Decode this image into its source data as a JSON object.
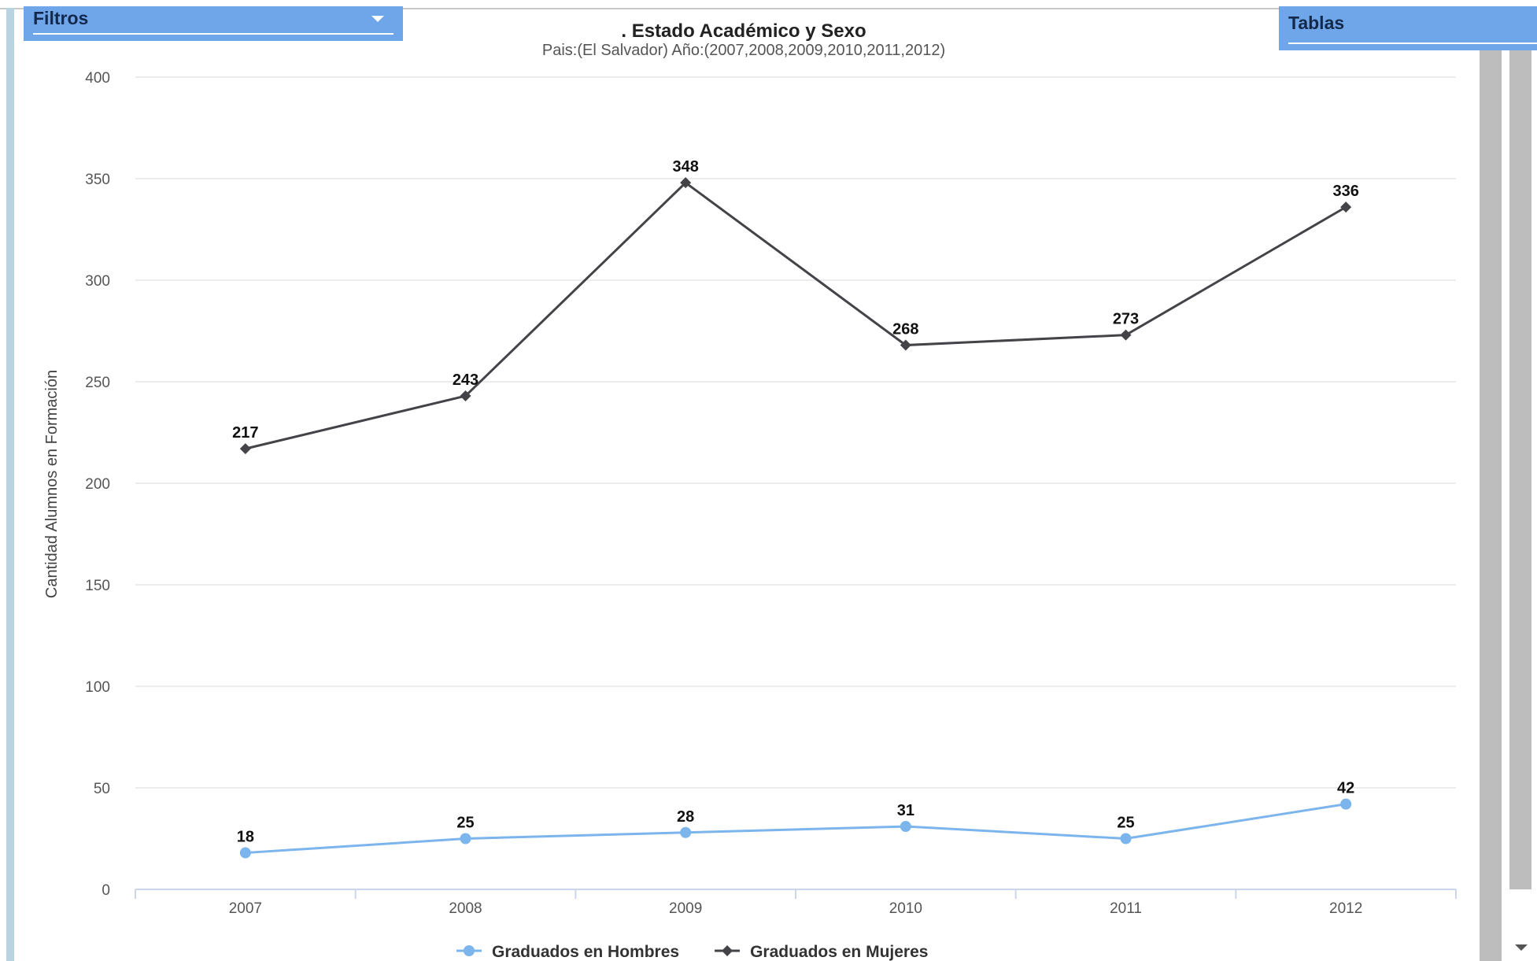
{
  "panels": {
    "filtros": {
      "label": "Filtros"
    },
    "tablas": {
      "label": "Tablas"
    }
  },
  "chart_data": {
    "type": "line",
    "title": ". Estado Académico y Sexo",
    "subtitle": "Pais:(El Salvador) Año:(2007,2008,2009,2010,2011,2012)",
    "xlabel": "",
    "ylabel": "Cantidad Alumnos en Formación",
    "ylim": [
      0,
      400
    ],
    "yticks": [
      0,
      50,
      100,
      150,
      200,
      250,
      300,
      350,
      400
    ],
    "grid": true,
    "legend_position": "bottom",
    "categories": [
      "2007",
      "2008",
      "2009",
      "2010",
      "2011",
      "2012"
    ],
    "series": [
      {
        "name": "Graduados en Hombres",
        "values": [
          18,
          25,
          28,
          31,
          25,
          42
        ],
        "color": "#7cb5ec",
        "marker": "circle"
      },
      {
        "name": "Graduados en Mujeres",
        "values": [
          217,
          243,
          348,
          268,
          273,
          336
        ],
        "color": "#434348",
        "marker": "diamond"
      }
    ]
  }
}
